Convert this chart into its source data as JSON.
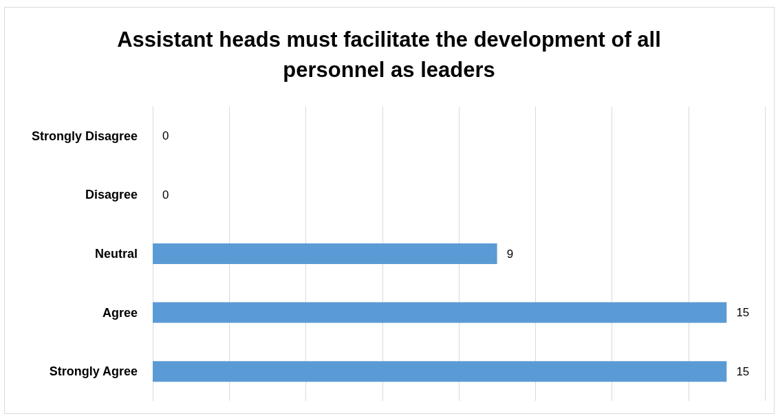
{
  "chart_data": {
    "type": "bar",
    "orientation": "horizontal",
    "title": "Assistant heads must facilitate the development of all personnel as leaders",
    "categories": [
      "Strongly Disagree",
      "Disagree",
      "Neutral",
      "Agree",
      "Strongly Agree"
    ],
    "values": [
      0,
      0,
      9,
      15,
      15
    ],
    "color": "#5b9bd5",
    "xlim": [
      0,
      16
    ],
    "xticks": [
      {
        "value": 0,
        "label": null
      },
      {
        "value": 2,
        "label": null
      },
      {
        "value": 4,
        "label": null
      },
      {
        "value": 6,
        "label": null
      },
      {
        "value": 8,
        "label": null
      },
      {
        "value": 10,
        "label": null
      },
      {
        "value": 12,
        "label": null
      },
      {
        "value": 14,
        "label": null
      },
      {
        "value": 16,
        "label": null
      }
    ],
    "grid": "x",
    "data_labels": true,
    "tick_labels": "y"
  }
}
